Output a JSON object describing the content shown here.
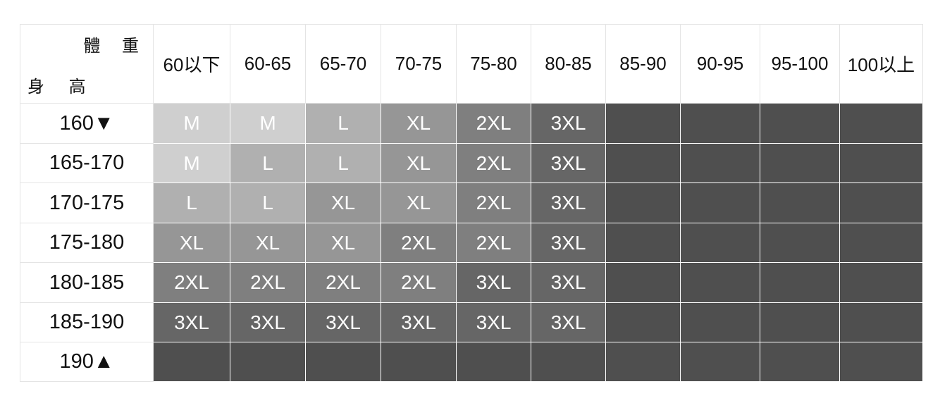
{
  "corner": {
    "weight_label": "體 重",
    "height_label": "身 高"
  },
  "weights": [
    "60以下",
    "60-65",
    "65-70",
    "70-75",
    "75-80",
    "80-85",
    "85-90",
    "90-95",
    "95-100",
    "100以上"
  ],
  "heights": [
    "160▼",
    "165-170",
    "170-175",
    "175-180",
    "180-185",
    "185-190",
    "190▲"
  ],
  "sizes": [
    [
      "M",
      "M",
      "L",
      "XL",
      "2XL",
      "3XL",
      "",
      "",
      "",
      ""
    ],
    [
      "M",
      "L",
      "L",
      "XL",
      "2XL",
      "3XL",
      "",
      "",
      "",
      ""
    ],
    [
      "L",
      "L",
      "XL",
      "XL",
      "2XL",
      "3XL",
      "",
      "",
      "",
      ""
    ],
    [
      "XL",
      "XL",
      "XL",
      "2XL",
      "2XL",
      "3XL",
      "",
      "",
      "",
      ""
    ],
    [
      "2XL",
      "2XL",
      "2XL",
      "2XL",
      "3XL",
      "3XL",
      "",
      "",
      "",
      ""
    ],
    [
      "3XL",
      "3XL",
      "3XL",
      "3XL",
      "3XL",
      "3XL",
      "",
      "",
      "",
      ""
    ],
    [
      "",
      "",
      "",
      "",
      "",
      "",
      "",
      "",
      "",
      ""
    ]
  ],
  "colors": {
    "M": "#cfcfcf",
    "L": "#b0b0b0",
    "XL": "#969696",
    "2XL": "#7f7f7f",
    "3XL": "#666666",
    "empty": "#4f4f4f"
  }
}
